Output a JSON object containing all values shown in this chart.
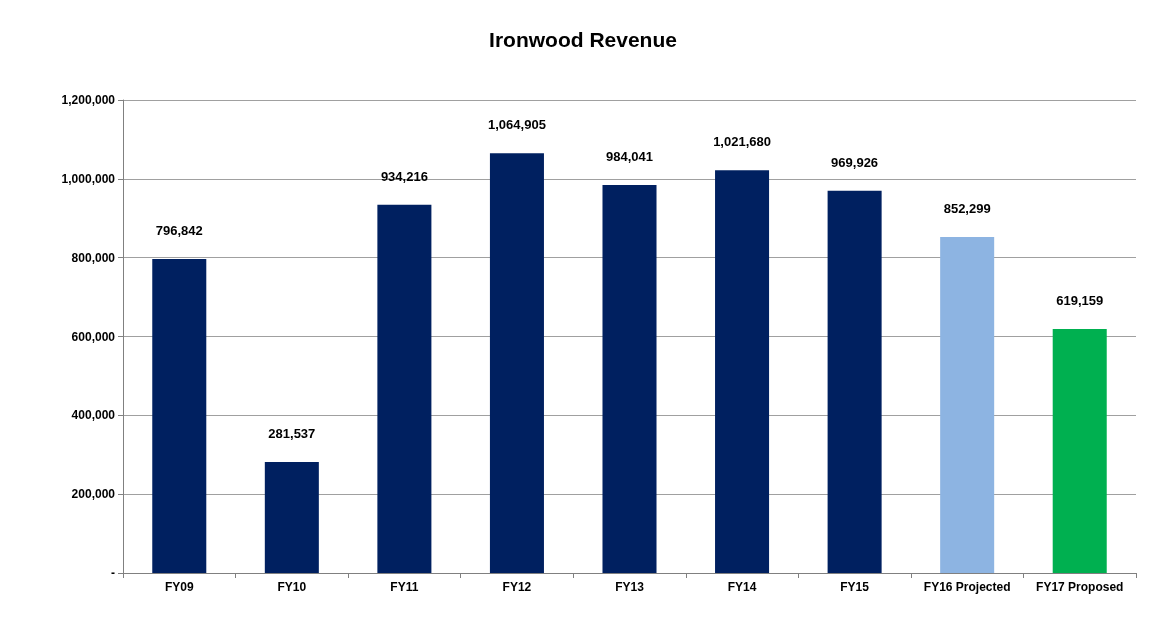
{
  "chart_data": {
    "type": "bar",
    "title": "Ironwood Revenue",
    "categories": [
      "FY09",
      "FY10",
      "FY11",
      "FY12",
      "FY13",
      "FY14",
      "FY15",
      "FY16 Projected",
      "FY17 Proposed"
    ],
    "values": [
      796842,
      281537,
      934216,
      1064905,
      984041,
      1021680,
      969926,
      852299,
      619159
    ],
    "value_labels": [
      "796,842",
      "281,537",
      "934,216",
      "1,064,905",
      "984,041",
      "1,021,680",
      "969,926",
      "852,299",
      "619,159"
    ],
    "colors": [
      "#002060",
      "#002060",
      "#002060",
      "#002060",
      "#002060",
      "#002060",
      "#002060",
      "#8db4e2",
      "#00b050"
    ],
    "ylim": [
      0,
      1200000
    ],
    "yticks": [
      {
        "value": 0,
        "label": "-"
      },
      {
        "value": 200000,
        "label": "200,000"
      },
      {
        "value": 400000,
        "label": "400,000"
      },
      {
        "value": 600000,
        "label": "600,000"
      },
      {
        "value": 800000,
        "label": "800,000"
      },
      {
        "value": 1000000,
        "label": "1,000,000"
      },
      {
        "value": 1200000,
        "label": "1,200,000"
      }
    ],
    "grid": "y"
  }
}
